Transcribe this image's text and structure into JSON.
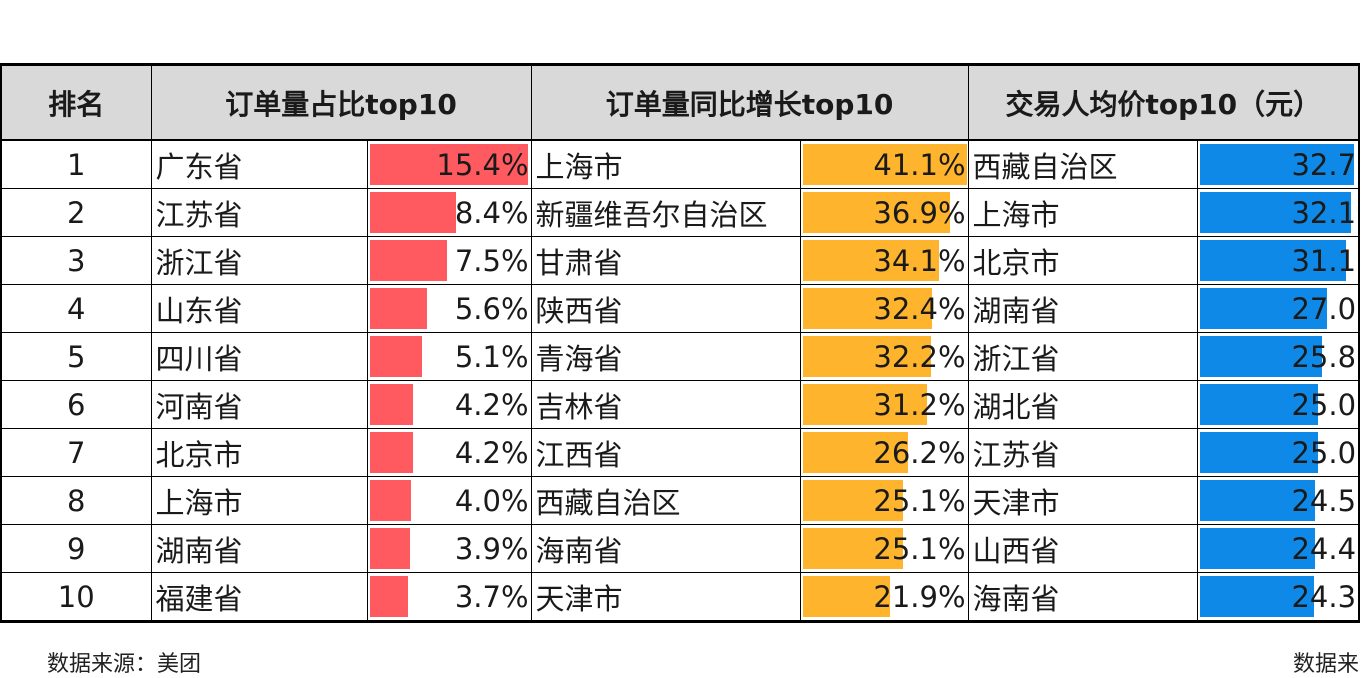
{
  "chart_data": {
    "type": "table",
    "headers": {
      "rank": "排名",
      "share": "订单量占比top10",
      "growth": "订单量同比增长top10",
      "price": "交易人均价top10（元）"
    },
    "colors": {
      "share": "#ff5a60",
      "growth": "#ffb42e",
      "price": "#0f89e8",
      "header_bg": "#d9d9d9"
    },
    "rows": [
      {
        "rank": "1",
        "share_name": "广东省",
        "share_value": 15.4,
        "share_label": "15.4%",
        "growth_name": "上海市",
        "growth_value": 41.1,
        "growth_label": "41.1%",
        "price_name": "西藏自治区",
        "price_value": 32.7,
        "price_label": "32.7"
      },
      {
        "rank": "2",
        "share_name": "江苏省",
        "share_value": 8.4,
        "share_label": "8.4%",
        "growth_name": "新疆维吾尔自治区",
        "growth_value": 36.9,
        "growth_label": "36.9%",
        "price_name": "上海市",
        "price_value": 32.1,
        "price_label": "32.1"
      },
      {
        "rank": "3",
        "share_name": "浙江省",
        "share_value": 7.5,
        "share_label": "7.5%",
        "growth_name": "甘肃省",
        "growth_value": 34.1,
        "growth_label": "34.1%",
        "price_name": "北京市",
        "price_value": 31.1,
        "price_label": "31.1"
      },
      {
        "rank": "4",
        "share_name": "山东省",
        "share_value": 5.6,
        "share_label": "5.6%",
        "growth_name": "陕西省",
        "growth_value": 32.4,
        "growth_label": "32.4%",
        "price_name": "湖南省",
        "price_value": 27.0,
        "price_label": "27.0"
      },
      {
        "rank": "5",
        "share_name": "四川省",
        "share_value": 5.1,
        "share_label": "5.1%",
        "growth_name": "青海省",
        "growth_value": 32.2,
        "growth_label": "32.2%",
        "price_name": "浙江省",
        "price_value": 25.8,
        "price_label": "25.8"
      },
      {
        "rank": "6",
        "share_name": "河南省",
        "share_value": 4.2,
        "share_label": "4.2%",
        "growth_name": "吉林省",
        "growth_value": 31.2,
        "growth_label": "31.2%",
        "price_name": "湖北省",
        "price_value": 25.0,
        "price_label": "25.0"
      },
      {
        "rank": "7",
        "share_name": "北京市",
        "share_value": 4.2,
        "share_label": "4.2%",
        "growth_name": "江西省",
        "growth_value": 26.2,
        "growth_label": "26.2%",
        "price_name": "江苏省",
        "price_value": 25.0,
        "price_label": "25.0"
      },
      {
        "rank": "8",
        "share_name": "上海市",
        "share_value": 4.0,
        "share_label": "4.0%",
        "growth_name": "西藏自治区",
        "growth_value": 25.1,
        "growth_label": "25.1%",
        "price_name": "天津市",
        "price_value": 24.5,
        "price_label": "24.5"
      },
      {
        "rank": "9",
        "share_name": "湖南省",
        "share_value": 3.9,
        "share_label": "3.9%",
        "growth_name": "海南省",
        "growth_value": 25.1,
        "growth_label": "25.1%",
        "price_name": "山西省",
        "price_value": 24.4,
        "price_label": "24.4"
      },
      {
        "rank": "10",
        "share_name": "福建省",
        "share_value": 3.7,
        "share_label": "3.7%",
        "growth_name": "天津市",
        "growth_value": 21.9,
        "growth_label": "21.9%",
        "price_name": "海南省",
        "price_value": 24.3,
        "price_label": "24.3"
      }
    ]
  },
  "footer": {
    "source_left": "数据来源：美团",
    "source_right": "数据来"
  }
}
